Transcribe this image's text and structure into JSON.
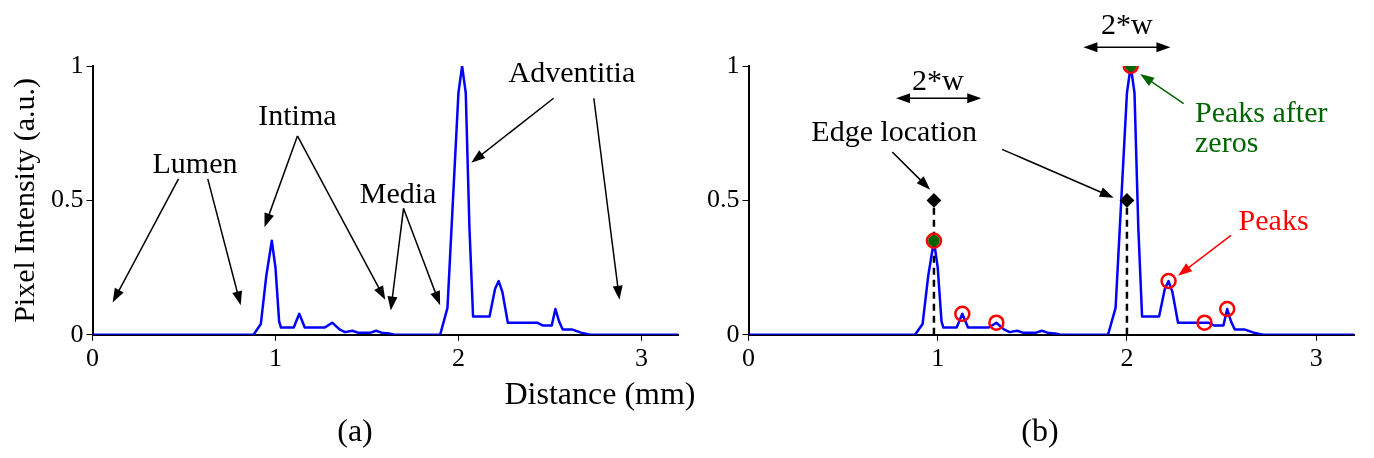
{
  "chart_data": [
    {
      "type": "line",
      "subtitle": "(a)",
      "xlabel": "Distance (mm)",
      "ylabel": "Pixel Intensity (a.u.)",
      "xlim": [
        0,
        3.2
      ],
      "xticks": [
        0,
        1,
        2,
        3
      ],
      "ylim": [
        0,
        1
      ],
      "yticks": [
        0,
        0.5,
        1
      ],
      "x": [
        0,
        0.88,
        0.92,
        0.95,
        0.98,
        1.0,
        1.02,
        1.03,
        1.1,
        1.13,
        1.16,
        1.27,
        1.31,
        1.35,
        1.38,
        1.42,
        1.45,
        1.52,
        1.55,
        1.58,
        1.62,
        1.65,
        1.9,
        1.94,
        1.97,
        2.0,
        2.02,
        2.04,
        2.06,
        2.08,
        2.17,
        2.2,
        2.22,
        2.24,
        2.27,
        2.43,
        2.46,
        2.51,
        2.53,
        2.55,
        2.57,
        2.62,
        2.67,
        2.72,
        3.2
      ],
      "series": [
        {
          "color": "#0000ff",
          "marker": "none",
          "values": [
            0,
            0,
            0.04,
            0.22,
            0.35,
            0.25,
            0.05,
            0.027,
            0.027,
            0.078,
            0.027,
            0.027,
            0.045,
            0.02,
            0.01,
            0.015,
            0.008,
            0.008,
            0.015,
            0.008,
            0.005,
            0,
            0,
            0.1,
            0.5,
            0.9,
            1,
            0.9,
            0.4,
            0.068,
            0.068,
            0.17,
            0.2,
            0.16,
            0.045,
            0.045,
            0.035,
            0.035,
            0.096,
            0.05,
            0.02,
            0.02,
            0.008,
            0,
            0
          ]
        }
      ],
      "annotations": [
        "Lumen",
        "Intima",
        "Media",
        {
          "text": "Adventitia",
          "x": 2.07,
          "y": 0.64
        }
      ]
    },
    {
      "type": "line",
      "subtitle": "(b)",
      "legend": "top right",
      "xlim": [
        0,
        3.2
      ],
      "xticks": [
        0,
        1,
        2,
        3
      ],
      "ylim": [
        0,
        1
      ],
      "yticks": [
        0,
        0.5,
        1
      ],
      "x": [
        0,
        0.88,
        0.92,
        0.95,
        0.98,
        1.0,
        1.02,
        1.03,
        1.1,
        1.13,
        1.16,
        1.27,
        1.31,
        1.35,
        1.38,
        1.42,
        1.45,
        1.52,
        1.55,
        1.58,
        1.62,
        1.65,
        1.9,
        1.94,
        1.97,
        2.0,
        2.02,
        2.04,
        2.06,
        2.08,
        2.17,
        2.2,
        2.22,
        2.24,
        2.27,
        2.43,
        2.46,
        2.51,
        2.53,
        2.55,
        2.57,
        2.62,
        2.67,
        2.72,
        3.2
      ],
      "series": [
        {
          "color": "#0000ff",
          "marker": "none",
          "values": [
            0,
            0,
            0.04,
            0.22,
            0.35,
            0.25,
            0.05,
            0.027,
            0.027,
            0.078,
            0.027,
            0.027,
            0.045,
            0.02,
            0.01,
            0.015,
            0.008,
            0.008,
            0.015,
            0.008,
            0.005,
            0,
            0,
            0.1,
            0.5,
            0.9,
            1,
            0.9,
            0.4,
            0.068,
            0.068,
            0.17,
            0.2,
            0.16,
            0.045,
            0.045,
            0.035,
            0.035,
            0.096,
            0.05,
            0.02,
            0.02,
            0.008,
            0,
            0
          ]
        },
        {
          "type": "lollipop",
          "name": "Edge location",
          "x": [
            0.98,
            2.0
          ],
          "values": [
            0.5,
            0.5
          ],
          "color": "#000000",
          "marker": "diamond",
          "line_style": "dashed"
        },
        {
          "type": "scatter",
          "name": "Peaks",
          "x": [
            0.98,
            1.13,
            1.31,
            2.02,
            2.22,
            2.41,
            2.53
          ],
          "values": [
            0.35,
            0.078,
            0.045,
            1,
            0.2,
            0.045,
            0.096
          ],
          "color": "#ff0000",
          "marker": "circle"
        },
        {
          "type": "scatter",
          "name": "Peaks after zeros",
          "x": [
            0.98,
            2.02
          ],
          "values": [
            0.35,
            1
          ],
          "color": "#006400",
          "marker": "circle"
        }
      ],
      "annotations": [
        "2*w",
        "2*w"
      ]
    }
  ]
}
